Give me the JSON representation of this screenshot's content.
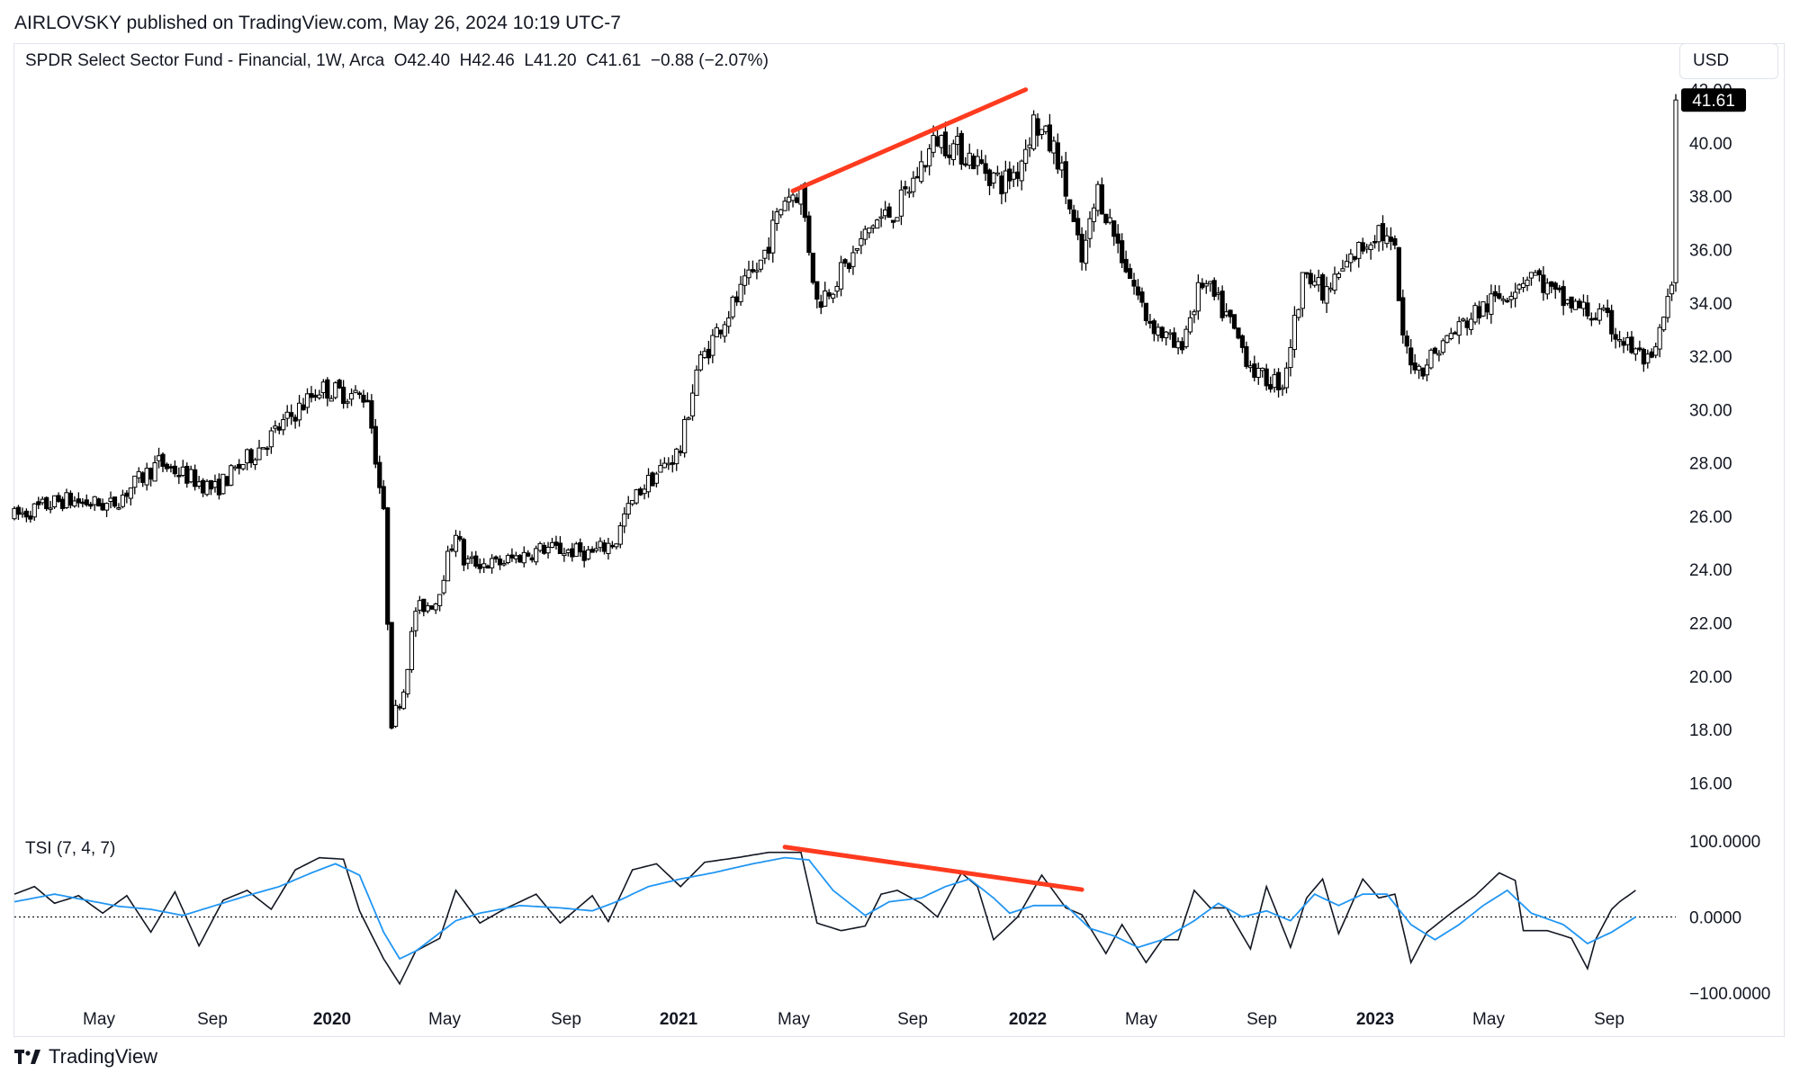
{
  "header": {
    "published": "AIRLOVSKY published on TradingView.com, May 26, 2024 10:19 UTC-7",
    "legend": "SPDR Select Sector Fund - Financial, 1W, Arca  O42.40  H42.46  L41.20  C41.61  −0.88 (−2.07%)",
    "currency": "USD"
  },
  "footer": {
    "brand": "TradingView"
  },
  "colors": {
    "up": "#ffffff",
    "down": "#000000",
    "stroke": "#000000",
    "tsi": "#131722",
    "signal": "#2196f3",
    "trend": "#ff3b1f",
    "price_badge": "#000000"
  },
  "chart_data": [
    {
      "type": "candlestick",
      "title": "SPDR Select Sector Fund - Financial, 1W, Arca",
      "ylim": [
        15,
        43
      ],
      "yticks": [
        "16.00",
        "18.00",
        "20.00",
        "22.00",
        "24.00",
        "26.00",
        "28.00",
        "30.00",
        "32.00",
        "34.00",
        "36.00",
        "38.00",
        "40.00",
        "42.00"
      ],
      "last_price": "41.61",
      "x_labels": [
        "May",
        "Sep",
        "2020",
        "May",
        "Sep",
        "2021",
        "May",
        "Sep",
        "2022",
        "May",
        "Sep",
        "2023",
        "May",
        "Sep"
      ],
      "bold_labels": [
        "2020",
        "2021",
        "2022",
        "2023"
      ],
      "anchors": [
        [
          0,
          26
        ],
        [
          12,
          26.6
        ],
        [
          24,
          26.4
        ],
        [
          36,
          28
        ],
        [
          50,
          27
        ],
        [
          64,
          29
        ],
        [
          76,
          30.8
        ],
        [
          86,
          30.5
        ],
        [
          88,
          30.5
        ],
        [
          92,
          26
        ],
        [
          94,
          18.3
        ],
        [
          97,
          19.5
        ],
        [
          100,
          22.5
        ],
        [
          105,
          22.8
        ],
        [
          110,
          25.5
        ],
        [
          112,
          24.3
        ],
        [
          120,
          24.2
        ],
        [
          132,
          24.8
        ],
        [
          144,
          24.6
        ],
        [
          150,
          25.1
        ],
        [
          152,
          26
        ],
        [
          156,
          27
        ],
        [
          166,
          28.5
        ],
        [
          170,
          31.5
        ],
        [
          176,
          33.2
        ],
        [
          186,
          35.5
        ],
        [
          192,
          38
        ],
        [
          196,
          38.2
        ],
        [
          200,
          34
        ],
        [
          208,
          35.5
        ],
        [
          214,
          37
        ],
        [
          220,
          37.5
        ],
        [
          230,
          40.2
        ],
        [
          238,
          39.5
        ],
        [
          246,
          38.5
        ],
        [
          250,
          39
        ],
        [
          254,
          40.8
        ],
        [
          260,
          39.5
        ],
        [
          266,
          35.5
        ],
        [
          270,
          38.2
        ],
        [
          278,
          35
        ],
        [
          282,
          33.5
        ],
        [
          290,
          32.2
        ],
        [
          296,
          34.8
        ],
        [
          302,
          33.5
        ],
        [
          306,
          32.3
        ],
        [
          310,
          31.2
        ],
        [
          316,
          31
        ],
        [
          322,
          35.5
        ],
        [
          326,
          34.2
        ],
        [
          334,
          35.8
        ],
        [
          340,
          36.8
        ],
        [
          344,
          35.8
        ],
        [
          346,
          32.5
        ],
        [
          350,
          31.5
        ],
        [
          358,
          32.8
        ],
        [
          364,
          33.6
        ],
        [
          370,
          34.2
        ],
        [
          378,
          35.2
        ],
        [
          384,
          34.2
        ],
        [
          390,
          33.8
        ],
        [
          396,
          33.4
        ],
        [
          402,
          32.4
        ],
        [
          408,
          31.6
        ],
        [
          412,
          34
        ],
        [
          414,
          35
        ]
      ],
      "trendline": {
        "from": [
          194,
          38.2
        ],
        "to": [
          252,
          42
        ]
      }
    },
    {
      "type": "line",
      "title": "TSI (7, 4, 7)",
      "ylim": [
        -100,
        100
      ],
      "yticks": [
        "100.0000",
        "0.0000",
        "−100.0000"
      ],
      "series": [
        {
          "role": "tsi",
          "anchors": [
            [
              0,
              30
            ],
            [
              5,
              40
            ],
            [
              10,
              18
            ],
            [
              16,
              28
            ],
            [
              22,
              5
            ],
            [
              28,
              28
            ],
            [
              34,
              -20
            ],
            [
              40,
              33
            ],
            [
              46,
              -38
            ],
            [
              52,
              22
            ],
            [
              58,
              35
            ],
            [
              64,
              10
            ],
            [
              70,
              62
            ],
            [
              76,
              78
            ],
            [
              82,
              76
            ],
            [
              86,
              8
            ],
            [
              92,
              -55
            ],
            [
              96,
              -88
            ],
            [
              100,
              -45
            ],
            [
              106,
              -28
            ],
            [
              110,
              35
            ],
            [
              116,
              -8
            ],
            [
              122,
              10
            ],
            [
              130,
              30
            ],
            [
              136,
              -8
            ],
            [
              144,
              28
            ],
            [
              148,
              -6
            ],
            [
              154,
              62
            ],
            [
              160,
              70
            ],
            [
              166,
              40
            ],
            [
              172,
              72
            ],
            [
              180,
              78
            ],
            [
              188,
              85
            ],
            [
              196,
              85
            ],
            [
              200,
              -8
            ],
            [
              206,
              -18
            ],
            [
              212,
              -12
            ],
            [
              216,
              30
            ],
            [
              220,
              35
            ],
            [
              226,
              18
            ],
            [
              230,
              0
            ],
            [
              236,
              58
            ],
            [
              240,
              40
            ],
            [
              244,
              -30
            ],
            [
              250,
              0
            ],
            [
              256,
              55
            ],
            [
              262,
              12
            ],
            [
              266,
              3
            ],
            [
              272,
              -48
            ],
            [
              276,
              -10
            ],
            [
              282,
              -60
            ],
            [
              286,
              -30
            ],
            [
              290,
              -30
            ],
            [
              294,
              35
            ],
            [
              298,
              12
            ],
            [
              302,
              12
            ],
            [
              308,
              -42
            ],
            [
              312,
              40
            ],
            [
              318,
              -40
            ],
            [
              322,
              25
            ],
            [
              326,
              50
            ],
            [
              330,
              -22
            ],
            [
              336,
              50
            ],
            [
              340,
              25
            ],
            [
              344,
              30
            ],
            [
              348,
              -60
            ],
            [
              352,
              -20
            ],
            [
              358,
              5
            ],
            [
              364,
              28
            ],
            [
              370,
              58
            ],
            [
              374,
              48
            ],
            [
              376,
              -18
            ],
            [
              382,
              -18
            ],
            [
              388,
              -28
            ],
            [
              392,
              -68
            ],
            [
              394,
              -30
            ],
            [
              398,
              10
            ],
            [
              400,
              20
            ],
            [
              404,
              35
            ]
          ]
        },
        {
          "role": "signal",
          "anchors": [
            [
              0,
              20
            ],
            [
              10,
              30
            ],
            [
              18,
              22
            ],
            [
              26,
              14
            ],
            [
              34,
              10
            ],
            [
              42,
              2
            ],
            [
              50,
              15
            ],
            [
              58,
              28
            ],
            [
              66,
              40
            ],
            [
              74,
              58
            ],
            [
              80,
              70
            ],
            [
              86,
              55
            ],
            [
              92,
              -20
            ],
            [
              96,
              -55
            ],
            [
              100,
              -45
            ],
            [
              110,
              -5
            ],
            [
              116,
              5
            ],
            [
              126,
              15
            ],
            [
              136,
              12
            ],
            [
              144,
              8
            ],
            [
              150,
              20
            ],
            [
              158,
              40
            ],
            [
              166,
              50
            ],
            [
              174,
              58
            ],
            [
              184,
              70
            ],
            [
              192,
              78
            ],
            [
              198,
              75
            ],
            [
              204,
              35
            ],
            [
              212,
              2
            ],
            [
              218,
              20
            ],
            [
              226,
              25
            ],
            [
              232,
              40
            ],
            [
              238,
              50
            ],
            [
              244,
              25
            ],
            [
              248,
              5
            ],
            [
              254,
              15
            ],
            [
              262,
              15
            ],
            [
              268,
              -15
            ],
            [
              274,
              -25
            ],
            [
              280,
              -40
            ],
            [
              286,
              -30
            ],
            [
              294,
              -5
            ],
            [
              300,
              18
            ],
            [
              306,
              0
            ],
            [
              312,
              8
            ],
            [
              318,
              -5
            ],
            [
              324,
              30
            ],
            [
              330,
              15
            ],
            [
              336,
              30
            ],
            [
              342,
              30
            ],
            [
              348,
              -10
            ],
            [
              354,
              -30
            ],
            [
              360,
              -10
            ],
            [
              366,
              15
            ],
            [
              372,
              35
            ],
            [
              378,
              5
            ],
            [
              386,
              -10
            ],
            [
              392,
              -35
            ],
            [
              398,
              -20
            ],
            [
              404,
              0
            ]
          ]
        }
      ],
      "trendline": {
        "from": [
          192,
          92
        ],
        "to": [
          266,
          36
        ]
      }
    }
  ]
}
